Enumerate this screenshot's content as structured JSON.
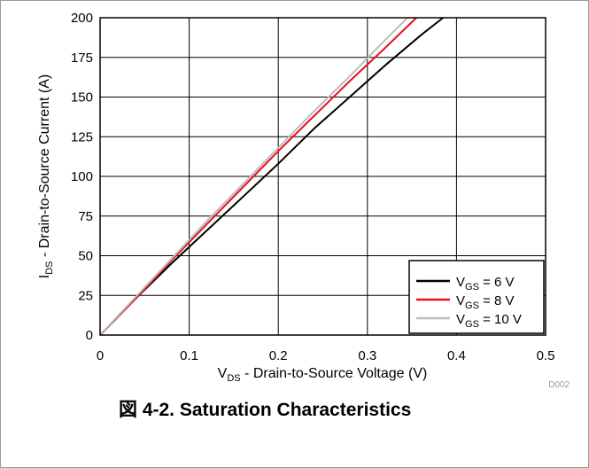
{
  "chart_data": {
    "type": "line",
    "title": "",
    "xlabel": {
      "main": "V",
      "sub": "DS",
      "rest": " - Drain-to-Source Voltage (V)"
    },
    "ylabel": {
      "main": "I",
      "sub": "DS",
      "rest": " - Drain-to-Source Current (A)"
    },
    "xlim": [
      0,
      0.5
    ],
    "ylim": [
      0,
      200
    ],
    "x_ticks": [
      "0",
      "0.1",
      "0.2",
      "0.3",
      "0.4",
      "0.5"
    ],
    "y_ticks": [
      "0",
      "25",
      "50",
      "75",
      "100",
      "125",
      "150",
      "175",
      "200"
    ],
    "grid": true,
    "legend_position": "bottom-right",
    "series": [
      {
        "name": {
          "main": "V",
          "sub": "GS",
          "rest": " = 6 V"
        },
        "color": "#000000",
        "x": [
          0,
          0.04,
          0.08,
          0.12,
          0.16,
          0.2,
          0.24,
          0.28,
          0.32,
          0.36,
          0.385
        ],
        "y": [
          0,
          23,
          45,
          66,
          87,
          108,
          130,
          150,
          170,
          189,
          200
        ]
      },
      {
        "name": {
          "main": "V",
          "sub": "GS",
          "rest": " = 8 V"
        },
        "color": "#e8101a",
        "x": [
          0,
          0.04,
          0.08,
          0.12,
          0.16,
          0.2,
          0.24,
          0.28,
          0.32,
          0.355
        ],
        "y": [
          0,
          23,
          47,
          70,
          93,
          116,
          138,
          160,
          181,
          200
        ]
      },
      {
        "name": {
          "main": "V",
          "sub": "GS",
          "rest": " = 10 V"
        },
        "color": "#bcbcbc",
        "x": [
          0,
          0.04,
          0.08,
          0.12,
          0.16,
          0.2,
          0.24,
          0.28,
          0.32,
          0.345
        ],
        "y": [
          0,
          24,
          48,
          72,
          95,
          118,
          141,
          163,
          186,
          200
        ]
      }
    ]
  },
  "figure_code": "D002",
  "caption": "図 4-2. Saturation Characteristics"
}
